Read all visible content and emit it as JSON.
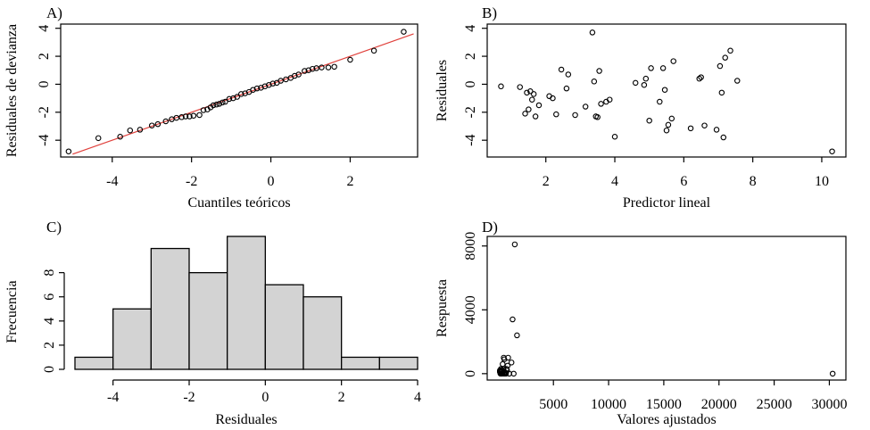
{
  "chart_data": [
    {
      "panel_label": "A)",
      "type": "scatter",
      "xlabel": "Cuantiles teóricos",
      "ylabel": "Residuales de devianza",
      "xlim": [
        -5.3,
        3.7
      ],
      "ylim": [
        -5.2,
        4.3
      ],
      "xticks": [
        -4,
        -2,
        0,
        2
      ],
      "yticks": [
        -4,
        -2,
        0,
        2,
        4
      ],
      "reference_line": {
        "x": [
          -5.0,
          3.6
        ],
        "y": [
          -5.0,
          3.6
        ],
        "color": "#e0413c"
      },
      "x": [
        -5.1,
        -4.35,
        -3.8,
        -3.55,
        -3.3,
        -3.0,
        -2.85,
        -2.65,
        -2.5,
        -2.38,
        -2.25,
        -2.15,
        -2.05,
        -1.95,
        -1.8,
        -1.7,
        -1.6,
        -1.52,
        -1.45,
        -1.37,
        -1.3,
        -1.22,
        -1.15,
        -1.05,
        -0.95,
        -0.85,
        -0.75,
        -0.65,
        -0.55,
        -0.45,
        -0.35,
        -0.25,
        -0.15,
        -0.05,
        0.05,
        0.15,
        0.25,
        0.38,
        0.5,
        0.6,
        0.7,
        0.85,
        0.95,
        1.05,
        1.15,
        1.28,
        1.45,
        1.6,
        2.0,
        2.6,
        3.35
      ],
      "y": [
        -4.8,
        -3.85,
        -3.75,
        -3.3,
        -3.25,
        -2.95,
        -2.85,
        -2.65,
        -2.5,
        -2.4,
        -2.35,
        -2.3,
        -2.3,
        -2.25,
        -2.2,
        -1.85,
        -1.8,
        -1.65,
        -1.5,
        -1.45,
        -1.4,
        -1.3,
        -1.25,
        -1.05,
        -1.0,
        -0.9,
        -0.7,
        -0.65,
        -0.55,
        -0.4,
        -0.3,
        -0.25,
        -0.15,
        -0.05,
        0.05,
        0.1,
        0.25,
        0.35,
        0.45,
        0.6,
        0.7,
        0.95,
        1.0,
        1.1,
        1.15,
        1.2,
        1.2,
        1.25,
        1.75,
        2.4,
        3.75
      ]
    },
    {
      "panel_label": "B)",
      "type": "scatter",
      "xlabel": "Predictor lineal",
      "ylabel": "Residuales",
      "xlim": [
        0.3,
        10.7
      ],
      "ylim": [
        -5.2,
        4.3
      ],
      "xticks": [
        2,
        4,
        6,
        8,
        10
      ],
      "yticks": [
        -4,
        -2,
        0,
        2,
        4
      ],
      "x": [
        0.7,
        1.25,
        1.4,
        1.45,
        1.5,
        1.55,
        1.6,
        1.65,
        1.7,
        1.8,
        2.1,
        2.2,
        2.3,
        2.45,
        2.6,
        2.65,
        2.85,
        3.15,
        3.35,
        3.4,
        3.45,
        3.5,
        3.55,
        3.6,
        3.75,
        3.85,
        4.0,
        4.6,
        4.85,
        4.9,
        5.0,
        5.05,
        5.3,
        5.4,
        5.45,
        5.5,
        5.55,
        5.65,
        5.7,
        6.2,
        6.45,
        6.5,
        6.6,
        6.95,
        7.05,
        7.1,
        7.15,
        7.2,
        7.35,
        7.55,
        10.3
      ],
      "y": [
        -0.15,
        -0.2,
        -2.1,
        -0.6,
        -1.8,
        -0.5,
        -1.1,
        -0.7,
        -2.3,
        -1.5,
        -0.85,
        -1.0,
        -2.15,
        1.05,
        -0.3,
        0.7,
        -2.2,
        -1.6,
        3.7,
        0.2,
        -2.3,
        -2.35,
        0.95,
        -1.4,
        -1.25,
        -1.1,
        -3.75,
        0.1,
        -0.05,
        0.4,
        -2.6,
        1.15,
        -1.25,
        1.15,
        -0.4,
        -3.3,
        -2.9,
        -2.45,
        1.65,
        -3.15,
        0.4,
        0.5,
        -2.95,
        -3.25,
        1.3,
        -0.6,
        -3.8,
        1.9,
        2.4,
        0.25,
        -4.8
      ]
    },
    {
      "panel_label": "C)",
      "type": "bar",
      "subtype": "histogram",
      "xlabel": "Residuales",
      "ylabel": "Frecuencia",
      "bin_edges": [
        -5,
        -4,
        -3,
        -2,
        -1,
        0,
        1,
        2,
        3,
        4
      ],
      "values": [
        1,
        5,
        10,
        8,
        11,
        7,
        6,
        1,
        1
      ],
      "xlim": [
        -5,
        4
      ],
      "ylim": [
        0,
        11
      ],
      "xticks": [
        -4,
        -2,
        0,
        2,
        4
      ],
      "yticks": [
        0,
        2,
        4,
        6,
        8
      ],
      "bar_color": "#d3d3d3"
    },
    {
      "panel_label": "D)",
      "type": "scatter",
      "xlabel": "Valores ajustados",
      "ylabel": "Respuesta",
      "xlim": [
        -1000,
        31500
      ],
      "ylim": [
        -400,
        8600
      ],
      "xticks": [
        5000,
        10000,
        15000,
        20000,
        25000,
        30000
      ],
      "yticks": [
        0,
        4000,
        8000
      ],
      "x": [
        150,
        200,
        250,
        300,
        350,
        400,
        450,
        500,
        550,
        600,
        650,
        700,
        750,
        800,
        850,
        900,
        1000,
        1200,
        1300,
        1400,
        1500,
        1700,
        200,
        300,
        400,
        600,
        150,
        250,
        350,
        500,
        30300
      ],
      "y": [
        100,
        200,
        300,
        200,
        150,
        600,
        300,
        1000,
        900,
        100,
        50,
        0,
        300,
        200,
        500,
        1000,
        0,
        700,
        3400,
        0,
        8100,
        2400,
        0,
        0,
        50,
        0,
        200,
        100,
        0,
        0,
        0
      ]
    }
  ]
}
